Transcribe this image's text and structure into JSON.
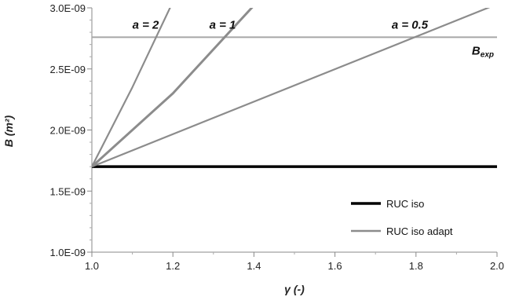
{
  "chart_data": {
    "type": "line",
    "xlabel": "γ (-)",
    "ylabel": "B (m²)",
    "xlim": [
      1.0,
      2.0
    ],
    "ylim": [
      1e-09,
      3e-09
    ],
    "x_ticks": [
      1.0,
      1.2,
      1.4,
      1.6,
      1.8,
      2.0
    ],
    "x_tick_labels": [
      "1.0",
      "1.2",
      "1.4",
      "1.6",
      "1.8",
      "2.0"
    ],
    "y_ticks": [
      1e-09,
      1.5e-09,
      2e-09,
      2.5e-09,
      3e-09
    ],
    "y_tick_labels": [
      "1.0E-09",
      "1.5E-09",
      "2.0E-09",
      "2.5E-09",
      "3.0E-09"
    ],
    "grid": false,
    "legend_position": "bottom-right",
    "series": [
      {
        "name": "RUC iso",
        "color": "#000000",
        "x": [
          1.0,
          2.0
        ],
        "y": [
          1.7e-09,
          1.7e-09
        ]
      },
      {
        "name": "RUC iso adapt",
        "color": "#8c8c8c",
        "x": [
          1.0,
          2.0
        ],
        "y": [
          1.7e-09,
          3.03e-09
        ]
      },
      {
        "name": "RUC iso adapt",
        "color": "#8c8c8c",
        "x": [
          1.0,
          1.2,
          1.4
        ],
        "y": [
          1.7e-09,
          2.3e-09,
          3.02e-09
        ]
      },
      {
        "name": "RUC iso adapt",
        "color": "#8c8c8c",
        "x": [
          1.0,
          1.1,
          1.2
        ],
        "y": [
          1.7e-09,
          2.35e-09,
          3.05e-09
        ]
      }
    ],
    "reference_line": {
      "label": "B",
      "label_subscript": "exp",
      "y": 2.76e-09,
      "color": "#a6a6a6"
    },
    "annotations": [
      {
        "text": "a = 2",
        "x": 1.1,
        "y": 2.85e-09
      },
      {
        "text": "a = 1",
        "x": 1.29,
        "y": 2.85e-09
      },
      {
        "text": "a = 0.5",
        "x": 1.74,
        "y": 2.85e-09
      }
    ],
    "legend": [
      {
        "label": "RUC iso",
        "color": "#000000"
      },
      {
        "label": "RUC iso adapt",
        "color": "#8c8c8c"
      }
    ]
  }
}
